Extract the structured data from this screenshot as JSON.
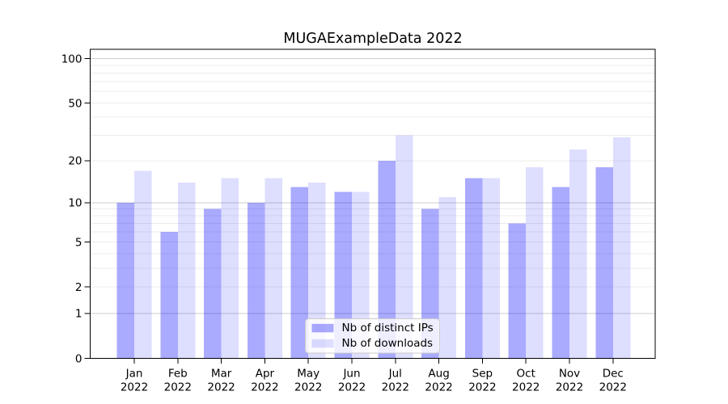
{
  "chart_data": {
    "type": "bar",
    "title": "MUGAExampleData 2022",
    "categories": [
      "Jan",
      "Feb",
      "Mar",
      "Apr",
      "May",
      "Jun",
      "Jul",
      "Aug",
      "Sep",
      "Oct",
      "Nov",
      "Dec"
    ],
    "category_year": "2022",
    "series": [
      {
        "name": "Nb of distinct IPs",
        "color": "rgba(0,0,255,0.335)",
        "values": [
          10,
          6,
          9,
          10,
          13,
          12,
          20,
          9,
          15,
          7,
          13,
          18
        ]
      },
      {
        "name": "Nb of downloads",
        "color": "rgba(0,0,255,0.13)",
        "values": [
          17,
          14,
          15,
          15,
          14,
          12,
          30,
          11,
          15,
          18,
          24,
          29
        ]
      }
    ],
    "y_axis": {
      "scale": "log(1+v)",
      "tick_values": [
        0,
        1,
        2,
        5,
        10,
        20,
        50,
        100
      ],
      "major_gridline_values": [
        1,
        10,
        100
      ],
      "minor_gridline_values": [
        2,
        3,
        4,
        5,
        6,
        7,
        8,
        9,
        20,
        30,
        40,
        50,
        60,
        70,
        80,
        90
      ],
      "range": [
        0,
        117
      ]
    },
    "legend": {
      "position": "lower center",
      "entries": [
        "Nb of distinct IPs",
        "Nb of downloads"
      ]
    },
    "grid": true
  },
  "colors": {
    "background": "#ffffff",
    "spine": "#000000",
    "major_grid": "#cccccc",
    "minor_grid": "#ececec",
    "tick_text": "#000000",
    "legend_border": "#cccccc",
    "legend_background": "rgba(255,255,255,0.8)"
  }
}
